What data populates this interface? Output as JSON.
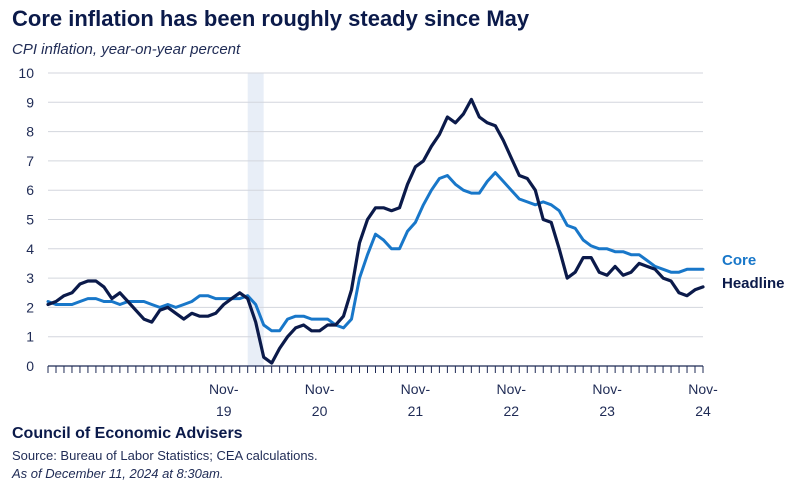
{
  "colors": {
    "core": "#1877c9",
    "headline": "#0b1a4a",
    "grid": "#d3d6dd",
    "recession": "#e8eef7",
    "axis": "#1f2b55"
  },
  "chart_data": {
    "type": "line",
    "title": "Core inflation has been roughly steady since May",
    "subtitle": "CPI inflation, year-on-year percent",
    "ylim": [
      0,
      10
    ],
    "yticks": [
      0,
      1,
      2,
      3,
      4,
      5,
      6,
      7,
      8,
      9,
      10
    ],
    "x_start": "2018-01",
    "x_end": "2024-11",
    "x_tick_labels": [
      {
        "date": "2019-11",
        "month": "Nov-",
        "year": "19"
      },
      {
        "date": "2020-11",
        "month": "Nov-",
        "year": "20"
      },
      {
        "date": "2021-11",
        "month": "Nov-",
        "year": "21"
      },
      {
        "date": "2022-11",
        "month": "Nov-",
        "year": "22"
      },
      {
        "date": "2023-11",
        "month": "Nov-",
        "year": "23"
      },
      {
        "date": "2024-11",
        "month": "Nov-",
        "year": "24"
      }
    ],
    "recession_band": [
      "2020-02",
      "2020-04"
    ],
    "grid": true,
    "legend": "right",
    "series": [
      {
        "name": "Core",
        "values": [
          2.2,
          2.1,
          2.1,
          2.1,
          2.2,
          2.3,
          2.3,
          2.2,
          2.2,
          2.1,
          2.2,
          2.2,
          2.2,
          2.1,
          2.0,
          2.1,
          2.0,
          2.1,
          2.2,
          2.4,
          2.4,
          2.3,
          2.3,
          2.3,
          2.3,
          2.4,
          2.1,
          1.4,
          1.2,
          1.2,
          1.6,
          1.7,
          1.7,
          1.6,
          1.6,
          1.6,
          1.4,
          1.3,
          1.6,
          3.0,
          3.8,
          4.5,
          4.3,
          4.0,
          4.0,
          4.6,
          4.9,
          5.5,
          6.0,
          6.4,
          6.5,
          6.2,
          6.0,
          5.9,
          5.9,
          6.3,
          6.6,
          6.3,
          6.0,
          5.7,
          5.6,
          5.5,
          5.6,
          5.5,
          5.3,
          4.8,
          4.7,
          4.3,
          4.1,
          4.0,
          4.0,
          3.9,
          3.9,
          3.8,
          3.8,
          3.6,
          3.4,
          3.3,
          3.2,
          3.2,
          3.3,
          3.3,
          3.3
        ]
      },
      {
        "name": "Headline",
        "values": [
          2.1,
          2.2,
          2.4,
          2.5,
          2.8,
          2.9,
          2.9,
          2.7,
          2.3,
          2.5,
          2.2,
          1.9,
          1.6,
          1.5,
          1.9,
          2.0,
          1.8,
          1.6,
          1.8,
          1.7,
          1.7,
          1.8,
          2.1,
          2.3,
          2.5,
          2.3,
          1.5,
          0.3,
          0.1,
          0.6,
          1.0,
          1.3,
          1.4,
          1.2,
          1.2,
          1.4,
          1.4,
          1.7,
          2.6,
          4.2,
          5.0,
          5.4,
          5.4,
          5.3,
          5.4,
          6.2,
          6.8,
          7.0,
          7.5,
          7.9,
          8.5,
          8.3,
          8.6,
          9.1,
          8.5,
          8.3,
          8.2,
          7.7,
          7.1,
          6.5,
          6.4,
          6.0,
          5.0,
          4.9,
          4.0,
          3.0,
          3.2,
          3.7,
          3.7,
          3.2,
          3.1,
          3.4,
          3.1,
          3.2,
          3.5,
          3.4,
          3.3,
          3.0,
          2.9,
          2.5,
          2.4,
          2.6,
          2.7
        ]
      }
    ]
  },
  "footer": {
    "org": "Council of Economic Advisers",
    "source": "Source: Bureau of Labor Statistics; CEA calculations.",
    "as_of": "As of December 11, 2024 at 8:30am."
  }
}
